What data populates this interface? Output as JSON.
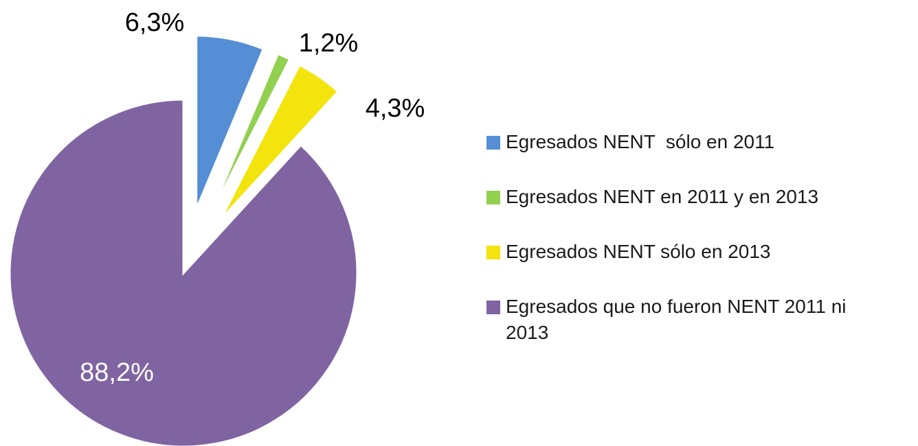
{
  "chart_data": {
    "type": "pie",
    "categories": [
      "Egresados NENT  sólo en 2011",
      "Egresados NENT en 2011 y en 2013",
      "Egresados NENT sólo en 2013",
      "Egresados que no fueron NENT 2011 ni 2013"
    ],
    "values": [
      6.3,
      1.2,
      4.3,
      88.2
    ],
    "value_labels": [
      "6,3%",
      "1,2%",
      "4,3%",
      "88,2%"
    ],
    "colors": [
      "#558ed5",
      "#92d050",
      "#f2e40c",
      "#8064a2"
    ],
    "legend": "right"
  }
}
